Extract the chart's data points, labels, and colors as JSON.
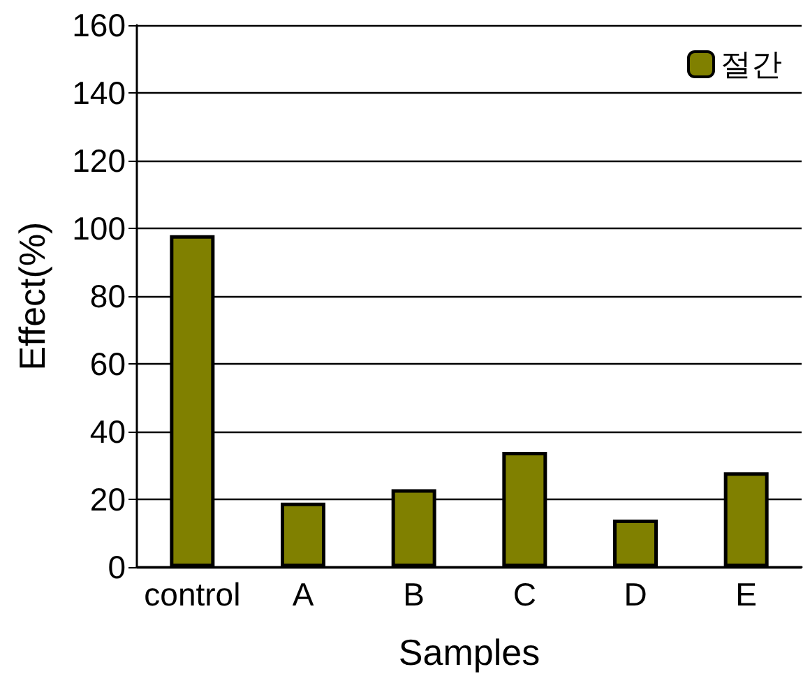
{
  "chart_data": {
    "type": "bar",
    "xlabel": "Samples",
    "ylabel": "Effect(%)",
    "categories": [
      "control",
      "A",
      "B",
      "C",
      "D",
      "E"
    ],
    "series": [
      {
        "name": "절간",
        "color": "#808000",
        "values": [
          98,
          19,
          23,
          34,
          14,
          28
        ]
      }
    ],
    "ylim": [
      0,
      160
    ],
    "yticks": [
      0,
      20,
      40,
      60,
      80,
      100,
      120,
      140,
      160
    ],
    "grid": "y",
    "legend": "top right"
  }
}
